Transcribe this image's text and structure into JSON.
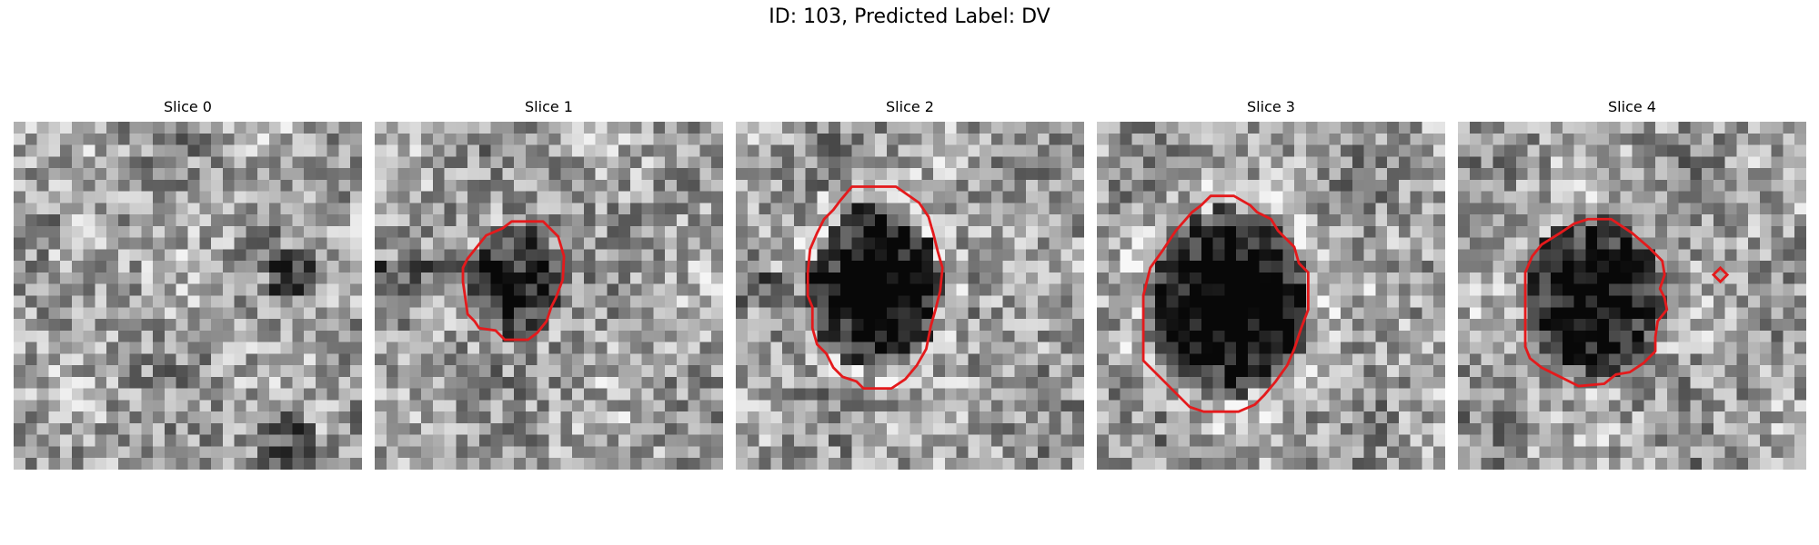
{
  "figure": {
    "title": "ID: 103, Predicted Label: DV"
  },
  "overlay_color": "#e41a1c",
  "slices": [
    {
      "title": "Slice 0",
      "has_contour": false
    },
    {
      "title": "Slice 1",
      "has_contour": true
    },
    {
      "title": "Slice 2",
      "has_contour": true
    },
    {
      "title": "Slice 3",
      "has_contour": true
    },
    {
      "title": "Slice 4",
      "has_contour": true
    }
  ]
}
